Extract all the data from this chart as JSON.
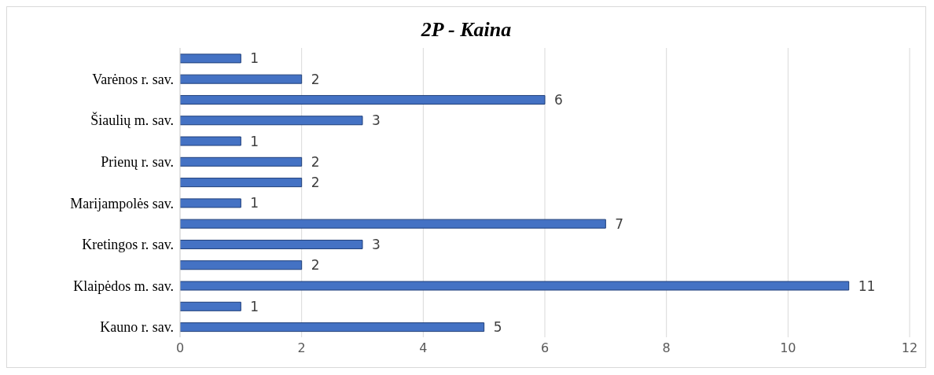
{
  "chart_data": {
    "type": "bar",
    "orientation": "horizontal",
    "title": "2P - Kaina",
    "categories": [
      null,
      "Varėnos r. sav.",
      null,
      "Šiaulių m. sav.",
      null,
      "Prienų r. sav.",
      null,
      "Marijampolės sav.",
      null,
      "Kretingos r. sav.",
      null,
      "Klaipėdos m. sav.",
      null,
      "Kauno r. sav."
    ],
    "values": [
      1,
      2,
      6,
      3,
      1,
      2,
      2,
      1,
      7,
      3,
      2,
      11,
      1,
      5
    ],
    "color": "#4472c4",
    "xlim": [
      0,
      12
    ],
    "xticks": [
      0,
      2,
      4,
      6,
      8,
      10,
      12
    ],
    "grid": "x",
    "data_labels": true
  }
}
